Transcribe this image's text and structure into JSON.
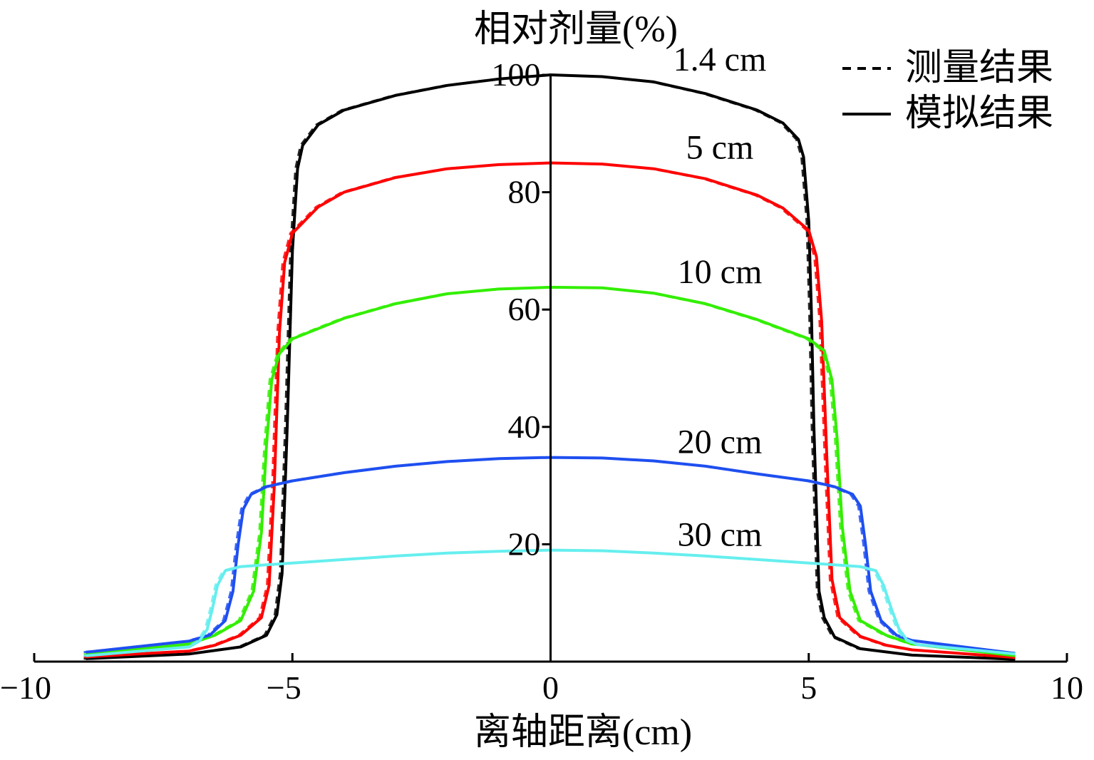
{
  "chart_data": {
    "type": "line",
    "xlabel": "离轴距离(cm)",
    "ylabel": "相对剂量(%)",
    "xlim": [
      -10,
      10
    ],
    "ylim": [
      0,
      100
    ],
    "x_ticks": [
      -10,
      -5,
      0,
      5,
      10
    ],
    "x_tick_labels": [
      "−10",
      "−5",
      "0",
      "5",
      "10"
    ],
    "y_ticks": [
      20,
      40,
      60,
      80,
      100
    ],
    "y_tick_labels": [
      "20",
      "40",
      "60",
      "80",
      "100"
    ],
    "grid": false,
    "legend_position": "top-right",
    "legend": [
      {
        "label": "测量结果",
        "style": "dashed",
        "color": "#000000"
      },
      {
        "label": "模拟结果",
        "style": "solid",
        "color": "#000000"
      }
    ],
    "series": [
      {
        "label": "1.4 cm",
        "color": "#000000",
        "points": [
          [
            -9.0,
            0.5
          ],
          [
            -7.0,
            1.3
          ],
          [
            -6.0,
            2.5
          ],
          [
            -5.5,
            4.5
          ],
          [
            -5.3,
            8
          ],
          [
            -5.2,
            15
          ],
          [
            -5.1,
            40
          ],
          [
            -5.0,
            70
          ],
          [
            -4.9,
            84
          ],
          [
            -4.8,
            88
          ],
          [
            -4.5,
            91.5
          ],
          [
            -4,
            94
          ],
          [
            -3,
            96.5
          ],
          [
            -2,
            98.2
          ],
          [
            -1,
            99.3
          ],
          [
            0,
            100
          ],
          [
            1,
            99.7
          ],
          [
            2,
            98.8
          ],
          [
            3,
            96.8
          ],
          [
            4,
            94
          ],
          [
            4.5,
            91.8
          ],
          [
            4.8,
            89
          ],
          [
            4.9,
            86
          ],
          [
            5.0,
            75
          ],
          [
            5.05,
            60
          ],
          [
            5.1,
            40
          ],
          [
            5.2,
            12
          ],
          [
            5.3,
            7.5
          ],
          [
            5.5,
            4.2
          ],
          [
            6.0,
            2.2
          ],
          [
            7.0,
            1.1
          ],
          [
            9.0,
            0.4
          ]
        ]
      },
      {
        "label": "5 cm",
        "color": "#ff0000",
        "points": [
          [
            -9.0,
            0.8
          ],
          [
            -7.0,
            1.8
          ],
          [
            -6.5,
            2.8
          ],
          [
            -6.0,
            4.5
          ],
          [
            -5.6,
            7.5
          ],
          [
            -5.45,
            13
          ],
          [
            -5.35,
            30
          ],
          [
            -5.25,
            56
          ],
          [
            -5.15,
            68
          ],
          [
            -5.0,
            73
          ],
          [
            -4.5,
            77.5
          ],
          [
            -4,
            80
          ],
          [
            -3,
            82.5
          ],
          [
            -2,
            84
          ],
          [
            -1,
            84.7
          ],
          [
            0,
            85
          ],
          [
            1,
            84.8
          ],
          [
            2,
            84
          ],
          [
            3,
            82.3
          ],
          [
            4,
            79.5
          ],
          [
            4.5,
            77.3
          ],
          [
            5.0,
            73.5
          ],
          [
            5.15,
            69
          ],
          [
            5.25,
            58
          ],
          [
            5.35,
            35
          ],
          [
            5.45,
            14
          ],
          [
            5.6,
            7.5
          ],
          [
            6.0,
            4.3
          ],
          [
            6.5,
            2.8
          ],
          [
            7.0,
            2.0
          ],
          [
            9.0,
            0.7
          ]
        ]
      },
      {
        "label": "10 cm",
        "color": "#33ee00",
        "points": [
          [
            -9.0,
            1.2
          ],
          [
            -7.0,
            3.0
          ],
          [
            -6.5,
            4.5
          ],
          [
            -6.0,
            7
          ],
          [
            -5.75,
            12
          ],
          [
            -5.6,
            22
          ],
          [
            -5.5,
            37
          ],
          [
            -5.4,
            48
          ],
          [
            -5.25,
            52.5
          ],
          [
            -5.0,
            55
          ],
          [
            -4,
            58.5
          ],
          [
            -3,
            61
          ],
          [
            -2,
            62.7
          ],
          [
            -1,
            63.5
          ],
          [
            0,
            63.8
          ],
          [
            1,
            63.7
          ],
          [
            2,
            62.8
          ],
          [
            3,
            61
          ],
          [
            4,
            58.3
          ],
          [
            5.0,
            55
          ],
          [
            5.3,
            53
          ],
          [
            5.45,
            48
          ],
          [
            5.55,
            38
          ],
          [
            5.65,
            23
          ],
          [
            5.8,
            12
          ],
          [
            6.0,
            7
          ],
          [
            6.5,
            4.5
          ],
          [
            7.0,
            3.0
          ],
          [
            9.0,
            1.0
          ]
        ]
      },
      {
        "label": "20 cm",
        "color": "#1f4ff0",
        "points": [
          [
            -9.0,
            1.6
          ],
          [
            -7.0,
            3.5
          ],
          [
            -6.6,
            4.5
          ],
          [
            -6.3,
            7
          ],
          [
            -6.15,
            12
          ],
          [
            -6.05,
            20
          ],
          [
            -5.95,
            26
          ],
          [
            -5.8,
            28.5
          ],
          [
            -5.5,
            29.8
          ],
          [
            -5,
            30.8
          ],
          [
            -4,
            32.2
          ],
          [
            -3,
            33.3
          ],
          [
            -2,
            34.1
          ],
          [
            -1,
            34.6
          ],
          [
            0,
            34.8
          ],
          [
            1,
            34.7
          ],
          [
            2,
            34.2
          ],
          [
            3,
            33.3
          ],
          [
            4,
            32
          ],
          [
            5,
            30.8
          ],
          [
            5.5,
            29.8
          ],
          [
            5.85,
            28.5
          ],
          [
            6.0,
            26.5
          ],
          [
            6.1,
            20
          ],
          [
            6.2,
            12
          ],
          [
            6.4,
            7
          ],
          [
            6.7,
            4.5
          ],
          [
            7.0,
            3.6
          ],
          [
            9.0,
            1.4
          ]
        ]
      },
      {
        "label": "30 cm",
        "color": "#66eeee",
        "points": [
          [
            -9.0,
            1.0
          ],
          [
            -7.0,
            2.5
          ],
          [
            -6.8,
            3.5
          ],
          [
            -6.65,
            5.5
          ],
          [
            -6.55,
            9
          ],
          [
            -6.45,
            13
          ],
          [
            -6.3,
            15.5
          ],
          [
            -6.0,
            16.2
          ],
          [
            -5,
            16.8
          ],
          [
            -4,
            17.4
          ],
          [
            -3,
            18
          ],
          [
            -2,
            18.5
          ],
          [
            -1,
            18.8
          ],
          [
            0,
            19
          ],
          [
            1,
            18.9
          ],
          [
            2,
            18.5
          ],
          [
            3,
            18
          ],
          [
            4,
            17.4
          ],
          [
            5,
            16.8
          ],
          [
            6.0,
            16.2
          ],
          [
            6.3,
            15.5
          ],
          [
            6.45,
            13
          ],
          [
            6.6,
            9
          ],
          [
            6.75,
            5.5
          ],
          [
            6.9,
            3.7
          ],
          [
            7.1,
            2.9
          ],
          [
            9.0,
            1.3
          ]
        ]
      }
    ]
  }
}
